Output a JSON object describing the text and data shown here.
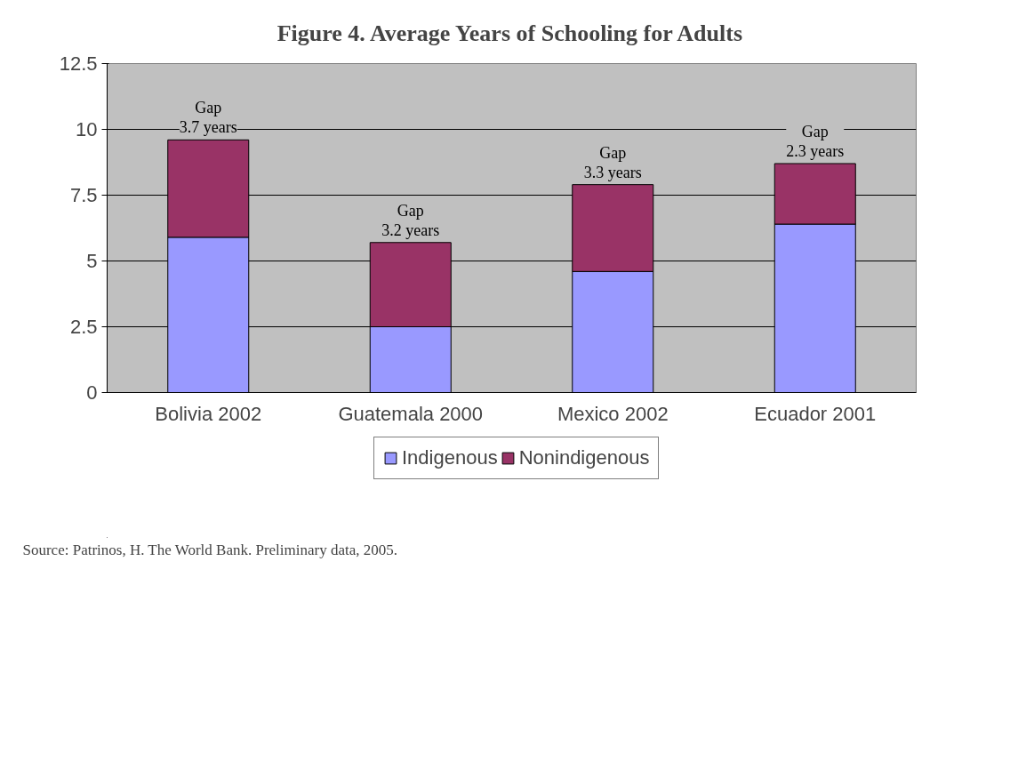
{
  "chart_data": {
    "type": "bar",
    "title": "Figure 4. Average Years of Schooling for Adults",
    "categories": [
      "Bolivia 2002",
      "Guatemala 2000",
      "Mexico 2002",
      "Ecuador 2001"
    ],
    "stacked": true,
    "series": [
      {
        "name": "Indigenous",
        "color": "#9999ff",
        "values": [
          5.9,
          2.5,
          4.6,
          6.4
        ]
      },
      {
        "name": "Nonindigenous",
        "color": "#993366",
        "values": [
          3.7,
          3.2,
          3.3,
          2.3
        ]
      }
    ],
    "ylim": [
      0,
      12.5
    ],
    "yticks": [
      0,
      2.5,
      5,
      7.5,
      10,
      12.5
    ],
    "grid": "y",
    "legend": "bottom",
    "annotations": [
      {
        "text": "Gap\n3.7 years",
        "x": "Bolivia 2002",
        "y": 9.6
      },
      {
        "text": "Gap\n3.2 years",
        "x": "Guatemala 2000",
        "y": 5.7
      },
      {
        "text": "Gap\n3.3 years",
        "x": "Mexico 2002",
        "y": 7.9
      },
      {
        "text": "Gap\n2.3 years",
        "x": "Ecuador 2001",
        "y": 8.7
      },
      "Source:  Patrinos, H.  The World Bank.  Preliminary data, 2005."
    ]
  }
}
